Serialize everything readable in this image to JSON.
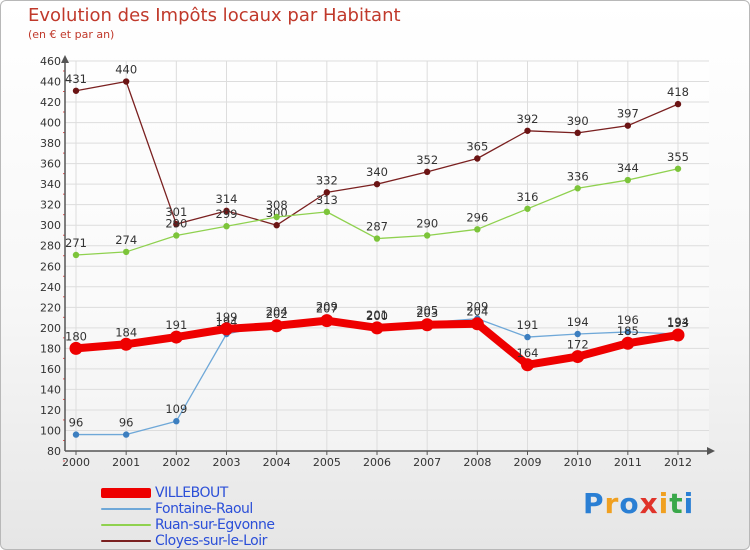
{
  "chart_data": {
    "type": "line",
    "title": "Evolution des Impôts locaux par Habitant",
    "subtitle": "(en € et par an)",
    "xlabel": "",
    "ylabel": "",
    "ylim": [
      80,
      460
    ],
    "ytick_step": 20,
    "grid": true,
    "legend_position": "bottom-left",
    "categories": [
      "2000",
      "2001",
      "2002",
      "2003",
      "2004",
      "2005",
      "2006",
      "2007",
      "2008",
      "2009",
      "2010",
      "2011",
      "2012"
    ],
    "series": [
      {
        "name": "Cloyes-sur-le-Loir",
        "color": "#7a2020",
        "point_color": "#6b1414",
        "values": [
          431,
          440,
          301,
          314,
          300,
          332,
          340,
          352,
          365,
          392,
          390,
          397,
          418
        ]
      },
      {
        "name": "Ruan-sur-Egvonne",
        "color": "#8fd14f",
        "point_color": "#7cc43a",
        "values": [
          271,
          274,
          290,
          299,
          308,
          313,
          287,
          290,
          296,
          316,
          336,
          344,
          355
        ]
      },
      {
        "name": "Fontaine-Raoul",
        "color": "#6fa8d8",
        "point_color": "#3d7fc0",
        "values": [
          96,
          96,
          109,
          194,
          204,
          209,
          201,
          205,
          209,
          191,
          194,
          196,
          194
        ]
      },
      {
        "name": "VILLEBOUT",
        "color": "#ee0000",
        "point_color": "#ee0000",
        "values": [
          180,
          184,
          191,
          199,
          202,
          207,
          200,
          203,
          204,
          164,
          172,
          185,
          193
        ]
      }
    ],
    "legend_entries": [
      "VILLEBOUT",
      "Fontaine-Raoul",
      "Ruan-sur-Egvonne",
      "Cloyes-sur-le-Loir"
    ]
  },
  "brand": {
    "logo_text": "Proxiti"
  }
}
